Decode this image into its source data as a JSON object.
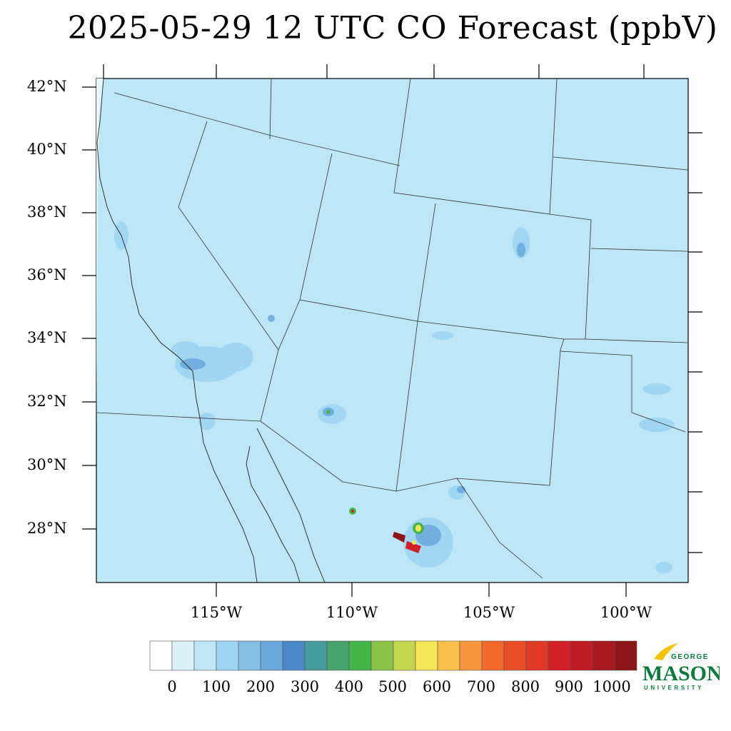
{
  "title": "2025-05-29 12 UTC CO Forecast (ppbV)",
  "latitude_labels": [
    "42°N",
    "40°N",
    "38°N",
    "36°N",
    "34°N",
    "32°N",
    "30°N",
    "28°N"
  ],
  "longitude_labels": [
    "115°W",
    "110°W",
    "105°W",
    "100°W"
  ],
  "colorbar": {
    "tick_labels": [
      "0",
      "100",
      "200",
      "300",
      "400",
      "500",
      "600",
      "700",
      "800",
      "900",
      "1000"
    ],
    "colors": [
      "#ffffff",
      "#dcf0fa",
      "#bde6f7",
      "#9dd5f2",
      "#85bfe4",
      "#6aa8dc",
      "#4a88c8",
      "#469b9c",
      "#46a36d",
      "#44b649",
      "#8bc34a",
      "#c2d64f",
      "#f7e656",
      "#f8c04a",
      "#f7963c",
      "#f26a2b",
      "#e94f27",
      "#df3a27",
      "#d22028",
      "#bf1d25",
      "#a8181f",
      "#8c1518"
    ]
  },
  "map": {
    "background_color": "#bde6f7",
    "hotspot_colors": [
      "#4a88c8",
      "#44b649",
      "#f7e656",
      "#d22028",
      "#8c1518"
    ]
  },
  "logo": {
    "line1": "GEORGE",
    "line2": "MASON",
    "line3": "UNIVERSITY",
    "green": "#0a7a3d",
    "gold": "#f5c400"
  }
}
